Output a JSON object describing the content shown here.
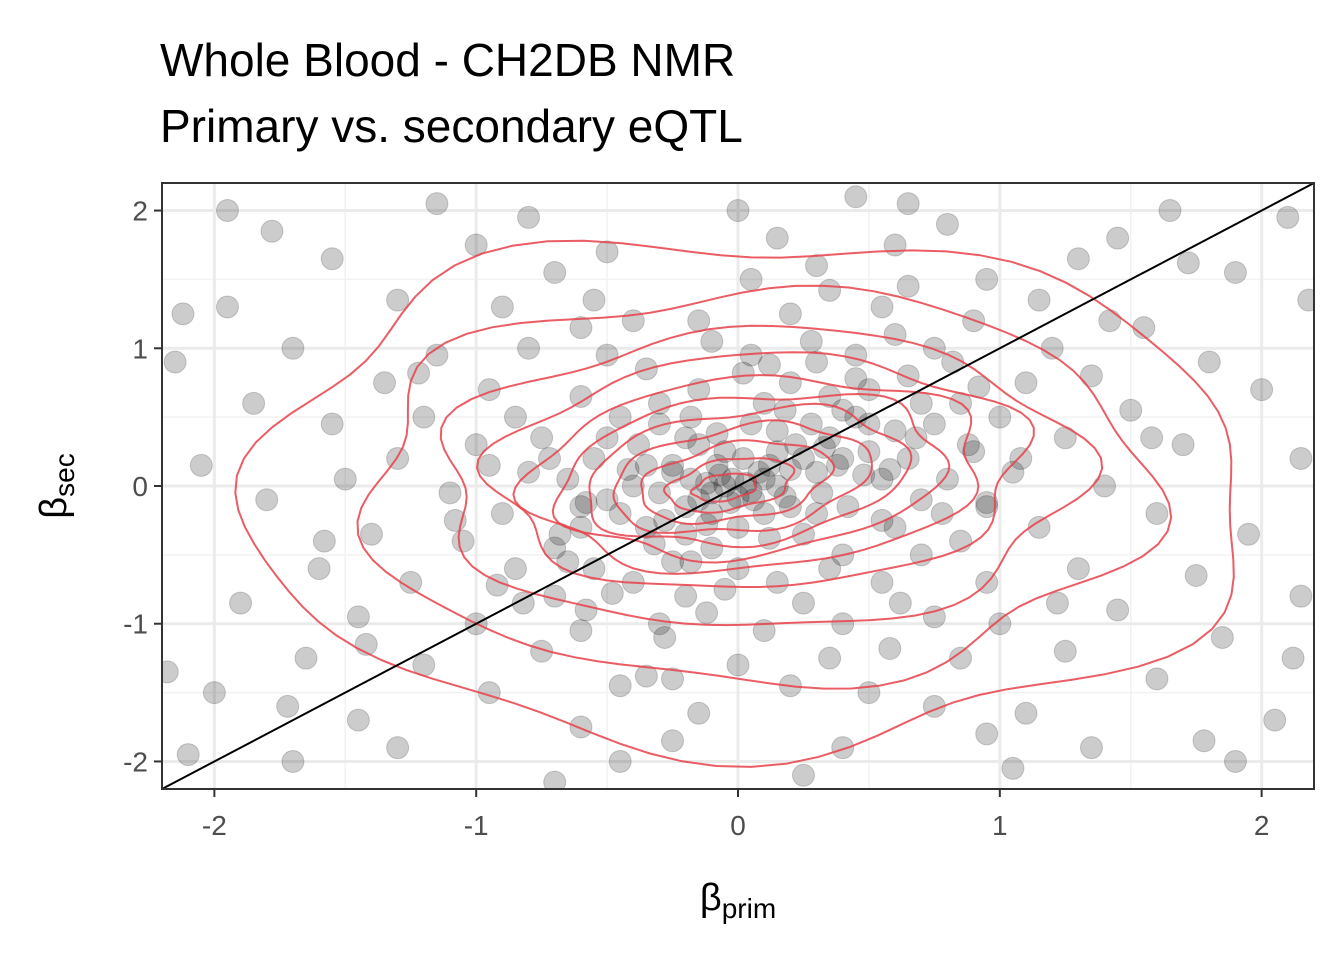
{
  "chart_data": {
    "type": "scatter",
    "title": "Whole Blood - CH2DB NMR",
    "subtitle": "Primary vs. secondary eQTL",
    "xlabel": {
      "symbol": "β",
      "subscript": "prim"
    },
    "ylabel": {
      "symbol": "β",
      "subscript": "sec"
    },
    "xlim": [
      -2.2,
      2.2
    ],
    "ylim": [
      -2.2,
      2.2
    ],
    "x_ticks": [
      -2,
      -1,
      0,
      1,
      2
    ],
    "y_ticks": [
      -2,
      -1,
      0,
      1,
      2
    ],
    "x_tick_labels": [
      "-2",
      "-1",
      "0",
      "1",
      "2"
    ],
    "y_tick_labels": [
      "-2",
      "-1",
      "0",
      "1",
      "2"
    ],
    "grid": true,
    "point_color": "#000000",
    "point_opacity": 0.2,
    "contour_color": "#e8414a",
    "reference_line": {
      "slope": 1,
      "intercept": 0,
      "color": "#000000"
    },
    "density_contours": [
      {
        "cx": -0.05,
        "cy": -0.01,
        "rx": 0.13,
        "ry": 0.09,
        "angle": 30
      },
      {
        "cx": -0.03,
        "cy": 0.01,
        "rx": 0.26,
        "ry": 0.17,
        "angle": 30
      },
      {
        "cx": -0.01,
        "cy": 0.03,
        "rx": 0.39,
        "ry": 0.26,
        "angle": 28
      },
      {
        "cx": 0.01,
        "cy": 0.05,
        "rx": 0.52,
        "ry": 0.36,
        "angle": 26
      },
      {
        "cx": 0.03,
        "cy": 0.07,
        "rx": 0.64,
        "ry": 0.46,
        "angle": 24
      },
      {
        "cx": 0.05,
        "cy": 0.08,
        "rx": 0.76,
        "ry": 0.56,
        "angle": 22
      },
      {
        "cx": 0.07,
        "cy": 0.09,
        "rx": 0.88,
        "ry": 0.68,
        "angle": 18
      },
      {
        "cx": 0.08,
        "cy": 0.1,
        "rx": 1.02,
        "ry": 0.84,
        "angle": 14
      },
      {
        "cx": 0.08,
        "cy": 0.05,
        "rx": 1.22,
        "ry": 1.08,
        "angle": 10
      },
      {
        "cx": 0.07,
        "cy": 0.0,
        "rx": 1.5,
        "ry": 1.42,
        "angle": 6
      },
      {
        "cx": 0.05,
        "cy": -0.05,
        "rx": 1.9,
        "ry": 1.85,
        "angle": 0
      }
    ],
    "points": [
      [
        -0.05,
        0.0
      ],
      [
        -0.02,
        0.05
      ],
      [
        -0.1,
        -0.05
      ],
      [
        0.03,
        0.02
      ],
      [
        -0.07,
        0.08
      ],
      [
        0.05,
        -0.04
      ],
      [
        -0.12,
        0.02
      ],
      [
        0.0,
        -0.08
      ],
      [
        0.08,
        0.1
      ],
      [
        -0.15,
        -0.1
      ],
      [
        0.1,
        0.05
      ],
      [
        -0.03,
        -0.12
      ],
      [
        0.12,
        0.15
      ],
      [
        -0.18,
        0.05
      ],
      [
        0.06,
        -0.1
      ],
      [
        -0.08,
        0.15
      ],
      [
        0.15,
        0.0
      ],
      [
        -0.2,
        -0.15
      ],
      [
        0.02,
        0.2
      ],
      [
        -0.1,
        -0.2
      ],
      [
        0.2,
        0.12
      ],
      [
        -0.25,
        0.1
      ],
      [
        0.18,
        -0.08
      ],
      [
        -0.05,
        0.25
      ],
      [
        0.25,
        0.2
      ],
      [
        -0.3,
        -0.05
      ],
      [
        0.1,
        -0.2
      ],
      [
        -0.15,
        0.3
      ],
      [
        0.3,
        0.1
      ],
      [
        -0.28,
        -0.25
      ],
      [
        0.22,
        0.3
      ],
      [
        -0.35,
        0.15
      ],
      [
        0.32,
        -0.05
      ],
      [
        0.0,
        -0.3
      ],
      [
        0.35,
        0.35
      ],
      [
        -0.4,
        0.0
      ],
      [
        0.15,
        0.4
      ],
      [
        -0.2,
        -0.35
      ],
      [
        0.4,
        0.2
      ],
      [
        -0.45,
        -0.2
      ],
      [
        0.05,
        0.45
      ],
      [
        0.42,
        -0.15
      ],
      [
        -0.38,
        0.3
      ],
      [
        0.28,
        0.45
      ],
      [
        -0.5,
        -0.1
      ],
      [
        0.5,
        0.25
      ],
      [
        -0.1,
        -0.45
      ],
      [
        0.45,
        0.5
      ],
      [
        -0.55,
        0.2
      ],
      [
        0.25,
        -0.35
      ],
      [
        0.55,
        0.05
      ],
      [
        -0.3,
        0.45
      ],
      [
        0.6,
        0.4
      ],
      [
        -0.6,
        -0.3
      ],
      [
        0.1,
        0.6
      ],
      [
        0.65,
        0.2
      ],
      [
        -0.65,
        0.05
      ],
      [
        0.35,
        0.65
      ],
      [
        -0.25,
        -0.55
      ],
      [
        0.7,
        -0.1
      ],
      [
        -0.7,
        -0.45
      ],
      [
        0.5,
        0.7
      ],
      [
        -0.45,
        0.5
      ],
      [
        0.75,
        0.45
      ],
      [
        0.0,
        -0.6
      ],
      [
        -0.8,
        0.1
      ],
      [
        0.2,
        0.75
      ],
      [
        0.8,
        0.05
      ],
      [
        -0.55,
        -0.6
      ],
      [
        0.6,
        -0.3
      ],
      [
        -0.15,
        0.7
      ],
      [
        0.4,
        -0.5
      ],
      [
        0.85,
        0.6
      ],
      [
        -0.75,
        0.35
      ],
      [
        0.65,
        0.8
      ],
      [
        -0.4,
        -0.7
      ],
      [
        0.9,
        0.25
      ],
      [
        -0.9,
        -0.2
      ],
      [
        0.3,
        0.9
      ],
      [
        -0.6,
        0.65
      ],
      [
        0.15,
        -0.7
      ],
      [
        0.95,
        -0.15
      ],
      [
        -0.2,
        -0.8
      ],
      [
        0.7,
        -0.5
      ],
      [
        -0.85,
        -0.6
      ],
      [
        0.45,
        0.95
      ],
      [
        -0.35,
        0.85
      ],
      [
        1.0,
        0.5
      ],
      [
        -1.0,
        0.3
      ],
      [
        0.05,
        0.95
      ],
      [
        0.85,
        -0.4
      ],
      [
        -0.7,
        -0.8
      ],
      [
        0.55,
        -0.7
      ],
      [
        -1.05,
        -0.4
      ],
      [
        1.05,
        0.1
      ],
      [
        0.75,
        1.0
      ],
      [
        -0.5,
        0.95
      ],
      [
        0.25,
        -0.85
      ],
      [
        -0.1,
        1.05
      ],
      [
        1.1,
        0.75
      ],
      [
        -0.95,
        0.7
      ],
      [
        0.95,
        -0.7
      ],
      [
        -0.3,
        -1.0
      ],
      [
        0.6,
        1.1
      ],
      [
        -1.1,
        -0.05
      ],
      [
        1.15,
        -0.3
      ],
      [
        0.1,
        -1.05
      ],
      [
        -0.8,
        1.0
      ],
      [
        0.4,
        -1.0
      ],
      [
        -1.2,
        0.5
      ],
      [
        1.2,
        1.0
      ],
      [
        -0.6,
        -1.05
      ],
      [
        0.9,
        1.2
      ],
      [
        -0.15,
        1.2
      ],
      [
        1.25,
        0.35
      ],
      [
        -1.25,
        -0.7
      ],
      [
        0.75,
        -0.95
      ],
      [
        -0.4,
        1.2
      ],
      [
        0.2,
        1.25
      ],
      [
        1.0,
        -1.0
      ],
      [
        -1.0,
        -1.0
      ],
      [
        1.3,
        -0.6
      ],
      [
        -1.3,
        0.2
      ],
      [
        0.55,
        1.3
      ],
      [
        -0.75,
        -1.2
      ],
      [
        0.0,
        -1.3
      ],
      [
        1.35,
        0.8
      ],
      [
        -1.15,
        0.95
      ],
      [
        0.35,
        -1.25
      ],
      [
        -0.55,
        1.35
      ],
      [
        1.15,
        1.35
      ],
      [
        -1.4,
        -0.35
      ],
      [
        1.4,
        0.0
      ],
      [
        0.85,
        -1.25
      ],
      [
        -0.25,
        -1.4
      ],
      [
        -1.35,
        0.75
      ],
      [
        0.65,
        1.45
      ],
      [
        1.45,
        -0.9
      ],
      [
        -1.45,
        -0.95
      ],
      [
        -0.9,
        1.3
      ],
      [
        0.2,
        -1.45
      ],
      [
        1.5,
        0.55
      ],
      [
        -0.45,
        -1.45
      ],
      [
        0.05,
        1.5
      ],
      [
        1.25,
        -1.2
      ],
      [
        -1.5,
        0.05
      ],
      [
        -1.2,
        -1.3
      ],
      [
        0.95,
        1.5
      ],
      [
        1.55,
        1.15
      ],
      [
        -0.7,
        1.55
      ],
      [
        0.5,
        -1.5
      ],
      [
        -1.55,
        0.45
      ],
      [
        1.6,
        -0.2
      ],
      [
        -0.95,
        -1.5
      ],
      [
        0.3,
        1.6
      ],
      [
        1.6,
        -1.4
      ],
      [
        -1.6,
        -0.6
      ],
      [
        -1.3,
        1.35
      ],
      [
        0.75,
        -1.6
      ],
      [
        1.3,
        1.65
      ],
      [
        -0.15,
        -1.65
      ],
      [
        1.7,
        0.3
      ],
      [
        -1.7,
        1.0
      ],
      [
        -0.5,
        1.7
      ],
      [
        1.1,
        -1.65
      ],
      [
        -1.65,
        -1.25
      ],
      [
        0.6,
        1.75
      ],
      [
        1.75,
        -0.65
      ],
      [
        -1.0,
        1.75
      ],
      [
        -0.6,
        -1.75
      ],
      [
        1.8,
        0.9
      ],
      [
        -1.8,
        -0.1
      ],
      [
        0.15,
        1.8
      ],
      [
        1.45,
        1.8
      ],
      [
        -1.45,
        -1.7
      ],
      [
        0.95,
        -1.8
      ],
      [
        -1.85,
        0.6
      ],
      [
        1.85,
        -1.1
      ],
      [
        -0.25,
        -1.85
      ],
      [
        0.8,
        1.9
      ],
      [
        -1.55,
        1.65
      ],
      [
        1.9,
        1.55
      ],
      [
        -1.9,
        -0.85
      ],
      [
        0.4,
        -1.9
      ],
      [
        -0.8,
        1.95
      ],
      [
        1.95,
        -0.35
      ],
      [
        -1.3,
        -1.9
      ],
      [
        1.35,
        -1.9
      ],
      [
        -1.95,
        1.3
      ],
      [
        0.0,
        2.0
      ],
      [
        2.0,
        0.7
      ],
      [
        -2.0,
        -1.5
      ],
      [
        1.65,
        2.0
      ],
      [
        -0.45,
        -2.0
      ],
      [
        2.05,
        -1.7
      ],
      [
        -2.05,
        0.15
      ],
      [
        0.65,
        2.05
      ],
      [
        -1.15,
        2.05
      ],
      [
        1.05,
        -2.05
      ],
      [
        -1.7,
        -2.0
      ],
      [
        2.1,
        1.95
      ],
      [
        -2.1,
        -1.95
      ],
      [
        2.15,
        -0.8
      ],
      [
        -2.15,
        0.9
      ],
      [
        0.25,
        -2.1
      ],
      [
        -0.7,
        -2.15
      ],
      [
        1.9,
        -2.0
      ],
      [
        -1.95,
        2.0
      ],
      [
        0.45,
        2.1
      ],
      [
        2.15,
        0.2
      ],
      [
        -0.2,
        0.35
      ],
      [
        0.3,
        -0.2
      ],
      [
        -0.35,
        -0.3
      ],
      [
        0.4,
        0.55
      ],
      [
        -0.5,
        0.35
      ],
      [
        0.55,
        -0.25
      ],
      [
        -0.6,
        -0.15
      ],
      [
        0.15,
        0.25
      ],
      [
        -0.25,
        0.15
      ],
      [
        0.2,
        -0.15
      ],
      [
        -0.12,
        -0.28
      ],
      [
        0.33,
        0.28
      ],
      [
        -0.42,
        0.12
      ],
      [
        0.48,
        0.08
      ],
      [
        -0.08,
        0.38
      ],
      [
        0.12,
        -0.38
      ],
      [
        -0.32,
        -0.42
      ],
      [
        0.38,
        0.15
      ],
      [
        -0.18,
        0.5
      ],
      [
        0.5,
        0.45
      ],
      [
        -0.65,
        -0.55
      ],
      [
        0.7,
        0.6
      ],
      [
        -0.72,
        0.2
      ],
      [
        0.78,
        -0.2
      ],
      [
        -0.05,
        -0.75
      ],
      [
        0.02,
        0.82
      ],
      [
        -0.85,
        0.5
      ],
      [
        0.88,
        0.3
      ],
      [
        -0.58,
        -0.9
      ],
      [
        0.62,
        -0.85
      ],
      [
        -0.3,
        0.6
      ],
      [
        0.35,
        -0.6
      ],
      [
        0.82,
        0.9
      ],
      [
        -0.82,
        -0.85
      ],
      [
        0.45,
        0.78
      ],
      [
        -0.48,
        -0.78
      ],
      [
        1.08,
        0.2
      ],
      [
        -1.08,
        -0.25
      ],
      [
        0.28,
        1.05
      ],
      [
        -0.28,
        -1.1
      ],
      [
        0.68,
        0.35
      ],
      [
        -0.68,
        -0.35
      ],
      [
        0.18,
        0.55
      ],
      [
        -0.18,
        -0.55
      ],
      [
        0.58,
        0.12
      ],
      [
        -0.58,
        -0.12
      ],
      [
        0.92,
        0.72
      ],
      [
        -0.92,
        -0.72
      ],
      [
        0.12,
        0.88
      ],
      [
        -0.12,
        -0.92
      ],
      [
        1.42,
        1.2
      ],
      [
        -1.42,
        -1.15
      ],
      [
        1.72,
        1.62
      ],
      [
        -1.72,
        -1.6
      ],
      [
        2.12,
        -1.25
      ],
      [
        -2.12,
        1.25
      ],
      [
        1.58,
        0.35
      ],
      [
        -1.58,
        -0.4
      ],
      [
        0.35,
        1.42
      ],
      [
        -0.35,
        -1.38
      ],
      [
        1.22,
        -0.85
      ],
      [
        -1.22,
        0.82
      ],
      [
        -0.95,
        0.15
      ],
      [
        0.95,
        -0.12
      ],
      [
        0.58,
        -1.18
      ],
      [
        -0.6,
        1.15
      ],
      [
        1.78,
        -1.85
      ],
      [
        -1.78,
        1.85
      ],
      [
        2.18,
        1.35
      ],
      [
        -2.18,
        -1.35
      ]
    ]
  }
}
